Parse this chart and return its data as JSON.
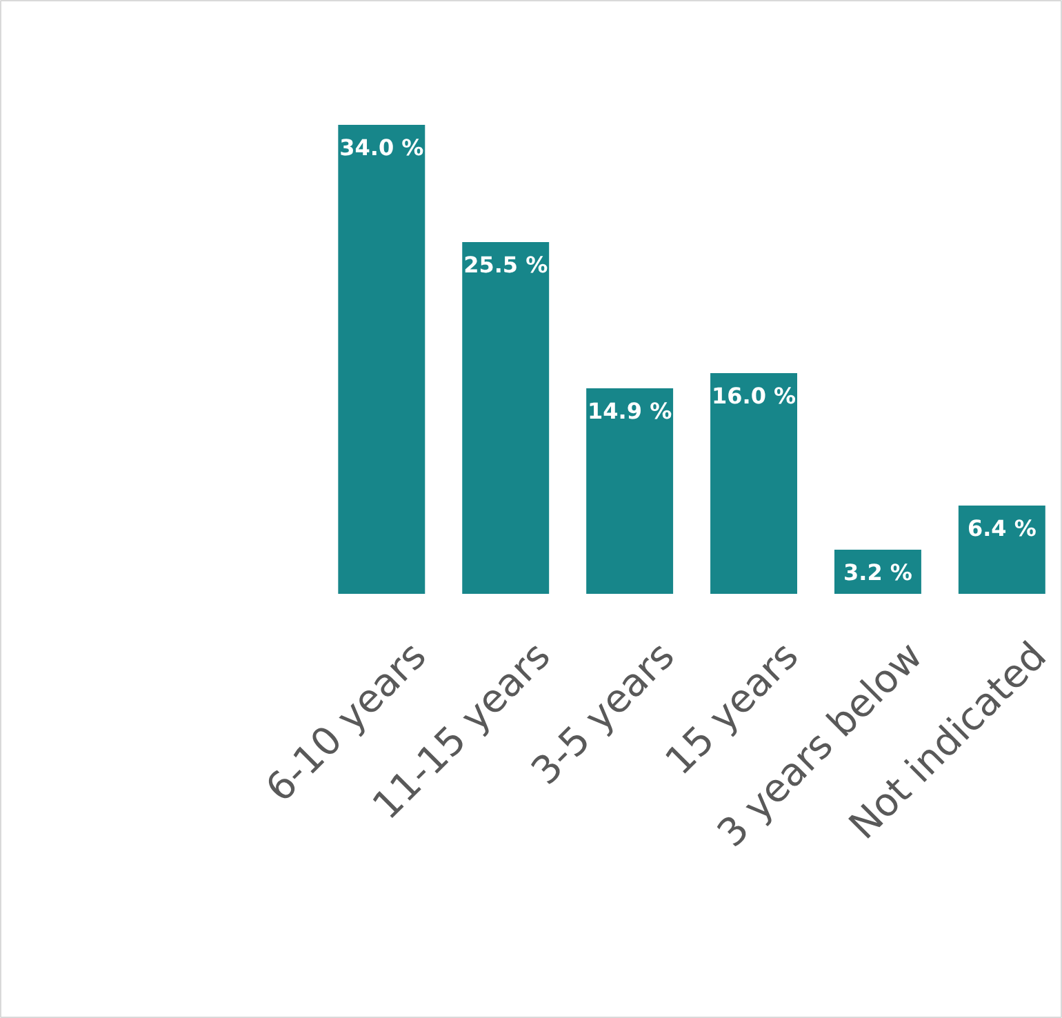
{
  "chart_data": {
    "type": "bar",
    "categories": [
      "6-10 years",
      "11-15 years",
      "3-5 years",
      "15 years",
      "3 years below",
      "Not indicated"
    ],
    "values": [
      34.0,
      25.5,
      14.9,
      16.0,
      3.2,
      6.4
    ],
    "value_labels": [
      "34.0 %",
      "25.5 %",
      "14.9 %",
      "16.0 %",
      "3.2 %",
      "6.4 %"
    ],
    "color": "#17868a",
    "grid": false
  }
}
